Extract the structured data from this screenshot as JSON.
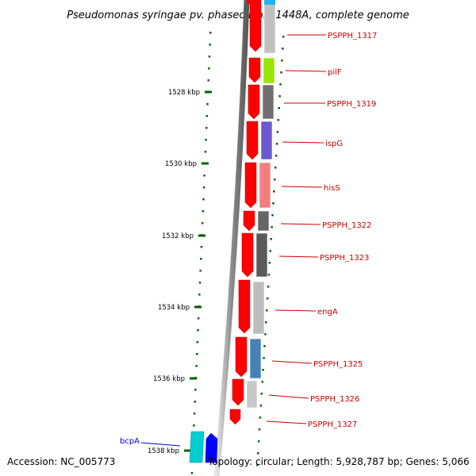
{
  "title": "Pseudomonas syringae pv. phaseolicola 1448A, complete genome",
  "footer": {
    "accession": "Accession: NC_005773",
    "summary": "Topology: circular; Length: 5,928,787 bp; Genes: 5,066"
  },
  "colors": {
    "backbone": "#8c8c8c",
    "forward_gene": "#ff0000",
    "tick": "#006400",
    "label_forward": "#cc0000",
    "label_reverse": "#0000cc"
  },
  "ticks": [
    {
      "label": "1528 kbp",
      "kbp": 1528
    },
    {
      "label": "1530 kbp",
      "kbp": 1530
    },
    {
      "label": "1532 kbp",
      "kbp": 1532
    },
    {
      "label": "1534 kbp",
      "kbp": 1534
    },
    {
      "label": "1536 kbp",
      "kbp": 1536
    },
    {
      "label": "1538 kbp",
      "kbp": 1538
    }
  ],
  "genes": [
    {
      "label": "PSPPH_1317",
      "strand": "+",
      "color": "#c0c0c0"
    },
    {
      "label": "pilF",
      "strand": "+",
      "color": "#99e600"
    },
    {
      "label": "PSPPH_1319",
      "strand": "+",
      "color": "#707070"
    },
    {
      "label": "ispG",
      "strand": "+",
      "color": "#6a5acd"
    },
    {
      "label": "hisS",
      "strand": "+",
      "color": "#f08080"
    },
    {
      "label": "PSPPH_1322",
      "strand": "+",
      "color": "#666666"
    },
    {
      "label": "PSPPH_1323",
      "strand": "+",
      "color": "#5a5a5a"
    },
    {
      "label": "engA",
      "strand": "+",
      "color": "#bdbdbd"
    },
    {
      "label": "PSPPH_1325",
      "strand": "+",
      "color": "#4682b4"
    },
    {
      "label": "PSPPH_1326",
      "strand": "+",
      "color": "#c8c8c8"
    },
    {
      "label": "PSPPH_1327",
      "strand": "+",
      "color": "#ff0000"
    },
    {
      "label": "bcpA",
      "strand": "-",
      "color": "#00ced1"
    }
  ]
}
